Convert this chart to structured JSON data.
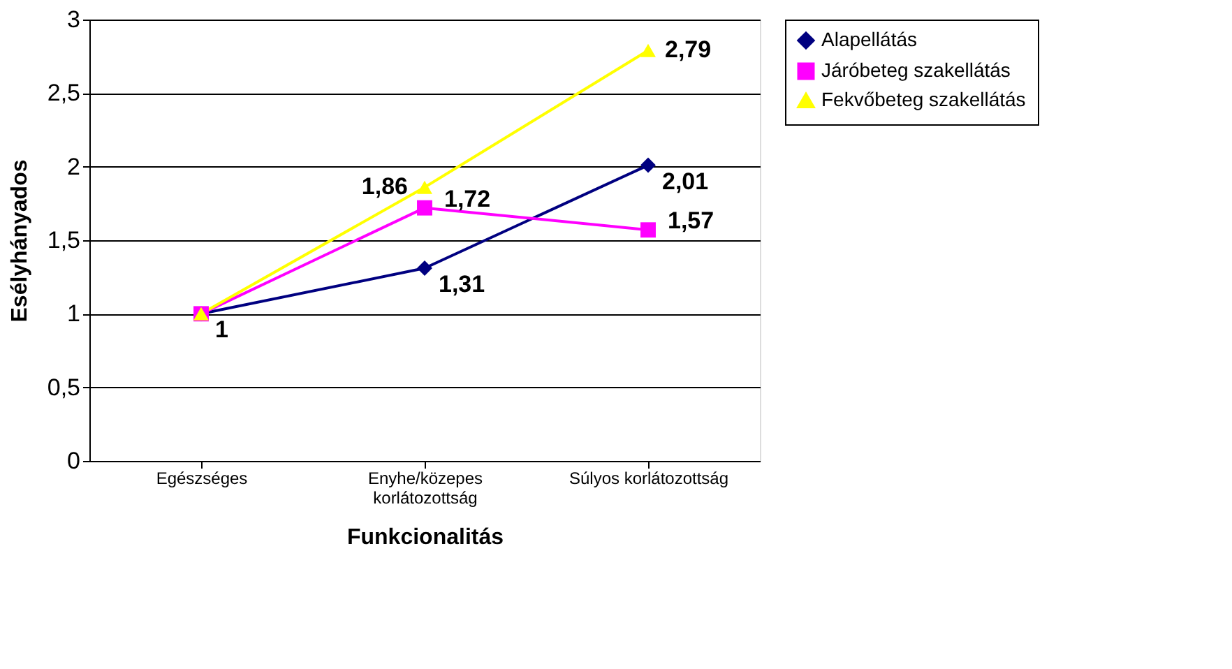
{
  "chart_data": {
    "type": "line",
    "xlabel": "Funkcionalitás",
    "ylabel": "Esélyhányados",
    "categories": [
      "Egészséges",
      "Enyhe/közepes korlátozottság",
      "Súlyos korlátozottság"
    ],
    "series": [
      {
        "name": "Alapellátás",
        "color": "#000080",
        "marker": "diamond",
        "values": [
          1,
          1.31,
          2.01
        ],
        "value_labels": [
          "1",
          "1,31",
          "2,01"
        ]
      },
      {
        "name": "Járóbeteg szakellátás",
        "color": "#ff00ff",
        "marker": "square",
        "values": [
          1,
          1.72,
          1.57
        ],
        "value_labels": [
          null,
          "1,72",
          "1,57"
        ]
      },
      {
        "name": "Fekvőbeteg szakellátás",
        "color": "#ffff00",
        "marker": "triangle",
        "values": [
          1,
          1.86,
          2.79
        ],
        "value_labels": [
          null,
          "1,86",
          "2,79"
        ]
      }
    ],
    "ylim": [
      0,
      3
    ],
    "yticks": [
      0,
      {
        "value": 0.5,
        "label": "0,5"
      },
      1,
      {
        "value": 1.5,
        "label": "1,5"
      },
      2,
      {
        "value": 2.5,
        "label": "2,5"
      },
      3
    ],
    "grid": "y",
    "legend": "right",
    "line_style": "solid"
  }
}
